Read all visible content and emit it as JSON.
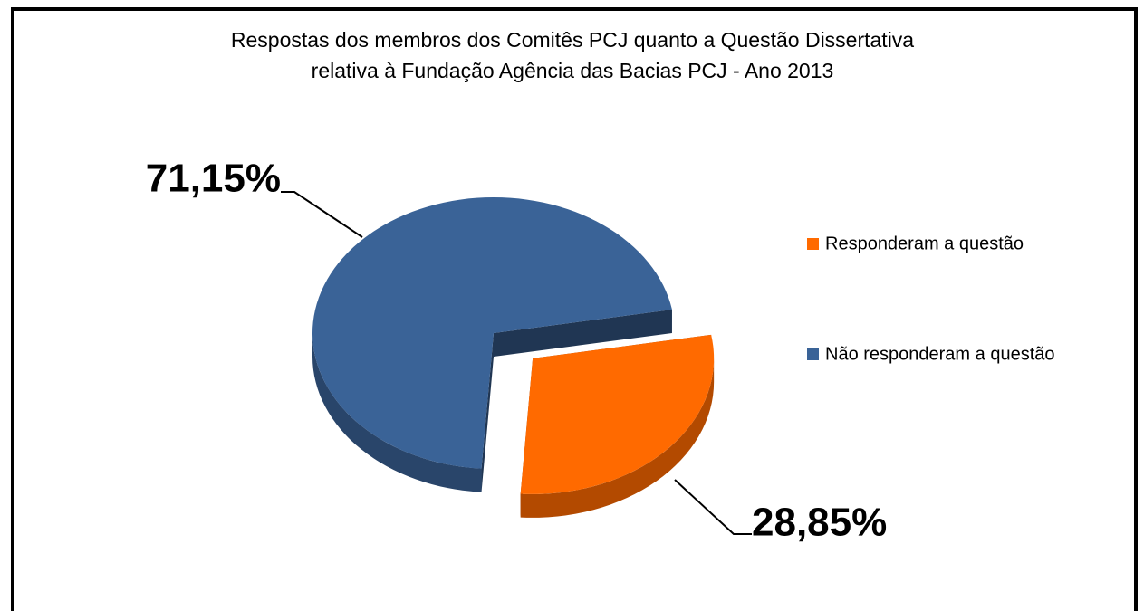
{
  "chart_data": {
    "type": "pie",
    "title": [
      "Respostas dos membros dos Comitês PCJ quanto a Questão Dissertativa",
      "relativa à Fundação Agência das Bacias PCJ - Ano 2013"
    ],
    "categories": [
      "Responderam a questão",
      "Não responderam a questão"
    ],
    "values": [
      28.85,
      71.15
    ],
    "value_labels": [
      "28,85%",
      "71,15%"
    ],
    "colors": [
      "#ff6a00",
      "#3a6397"
    ],
    "legend": "right"
  }
}
